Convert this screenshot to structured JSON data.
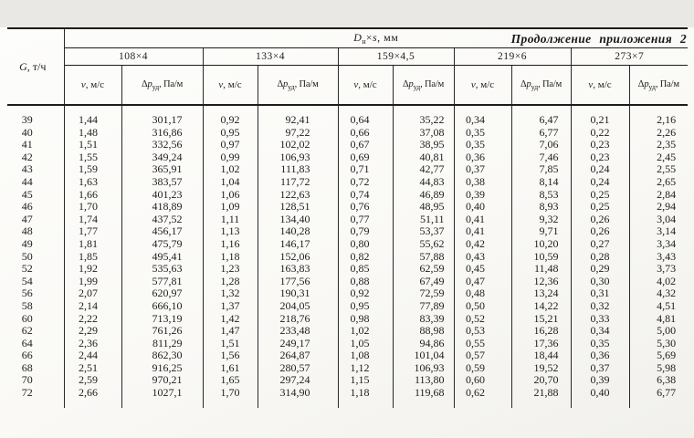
{
  "caption": "Продолжение приложения 2",
  "colors": {
    "paper": "#faf9f6",
    "ink": "#1d1d1d",
    "rule": "#1c1c1c"
  },
  "table": {
    "flow_header": {
      "symbol": "G",
      "unit": ", т/ч"
    },
    "diameter_header": {
      "symbol": "D",
      "subscript": "н",
      "times": "×",
      "symbol2": "s",
      "unit": ", мм"
    },
    "groups": [
      "108×4",
      "133×4",
      "159×4,5",
      "219×6",
      "273×7"
    ],
    "velocity_header": {
      "symbol": "v",
      "unit": ", м/с"
    },
    "pressure_header": {
      "delta": "Δ",
      "symbol": "p",
      "subscript": "уд",
      "unit": ", Па/м"
    },
    "rows": [
      {
        "g": "39",
        "values": [
          "1,44",
          "301,17",
          "0,92",
          "92,41",
          "0,64",
          "35,22",
          "0,34",
          "6,47",
          "0,21",
          "2,16"
        ]
      },
      {
        "g": "40",
        "values": [
          "1,48",
          "316,86",
          "0,95",
          "97,22",
          "0,66",
          "37,08",
          "0,35",
          "6,77",
          "0,22",
          "2,26"
        ]
      },
      {
        "g": "41",
        "values": [
          "1,51",
          "332,56",
          "0,97",
          "102,02",
          "0,67",
          "38,95",
          "0,35",
          "7,06",
          "0,23",
          "2,35"
        ]
      },
      {
        "g": "42",
        "values": [
          "1,55",
          "349,24",
          "0,99",
          "106,93",
          "0,69",
          "40,81",
          "0,36",
          "7,46",
          "0,23",
          "2,45"
        ]
      },
      {
        "g": "43",
        "values": [
          "1,59",
          "365,91",
          "1,02",
          "111,83",
          "0,71",
          "42,77",
          "0,37",
          "7,85",
          "0,24",
          "2,55"
        ]
      },
      {
        "g": "44",
        "values": [
          "1,63",
          "383,57",
          "1,04",
          "117,72",
          "0,72",
          "44,83",
          "0,38",
          "8,14",
          "0,24",
          "2,65"
        ]
      },
      {
        "g": "45",
        "values": [
          "1,66",
          "401,23",
          "1,06",
          "122,63",
          "0,74",
          "46,89",
          "0,39",
          "8,53",
          "0,25",
          "2,84"
        ]
      },
      {
        "g": "46",
        "values": [
          "1,70",
          "418,89",
          "1,09",
          "128,51",
          "0,76",
          "48,95",
          "0,40",
          "8,93",
          "0,25",
          "2,94"
        ]
      },
      {
        "g": "47",
        "values": [
          "1,74",
          "437,52",
          "1,11",
          "134,40",
          "0,77",
          "51,11",
          "0,41",
          "9,32",
          "0,26",
          "3,04"
        ]
      },
      {
        "g": "48",
        "values": [
          "1,77",
          "456,17",
          "1,13",
          "140,28",
          "0,79",
          "53,37",
          "0,41",
          "9,71",
          "0,26",
          "3,14"
        ]
      },
      {
        "g": "49",
        "values": [
          "1,81",
          "475,79",
          "1,16",
          "146,17",
          "0,80",
          "55,62",
          "0,42",
          "10,20",
          "0,27",
          "3,34"
        ]
      },
      {
        "g": "50",
        "values": [
          "1,85",
          "495,41",
          "1,18",
          "152,06",
          "0,82",
          "57,88",
          "0,43",
          "10,59",
          "0,28",
          "3,43"
        ]
      },
      {
        "g": "52",
        "values": [
          "1,92",
          "535,63",
          "1,23",
          "163,83",
          "0,85",
          "62,59",
          "0,45",
          "11,48",
          "0,29",
          "3,73"
        ]
      },
      {
        "g": "54",
        "values": [
          "1,99",
          "577,81",
          "1,28",
          "177,56",
          "0,88",
          "67,49",
          "0,47",
          "12,36",
          "0,30",
          "4,02"
        ]
      },
      {
        "g": "56",
        "values": [
          "2,07",
          "620,97",
          "1,32",
          "190,31",
          "0,92",
          "72,59",
          "0,48",
          "13,24",
          "0,31",
          "4,32"
        ]
      },
      {
        "g": "58",
        "values": [
          "2,14",
          "666,10",
          "1,37",
          "204,05",
          "0,95",
          "77,89",
          "0,50",
          "14,22",
          "0,32",
          "4,51"
        ]
      },
      {
        "g": "60",
        "values": [
          "2,22",
          "713,19",
          "1,42",
          "218,76",
          "0,98",
          "83,39",
          "0,52",
          "15,21",
          "0,33",
          "4,81"
        ]
      },
      {
        "g": "62",
        "values": [
          "2,29",
          "761,26",
          "1,47",
          "233,48",
          "1,02",
          "88,98",
          "0,53",
          "16,28",
          "0,34",
          "5,00"
        ]
      },
      {
        "g": "64",
        "values": [
          "2,36",
          "811,29",
          "1,51",
          "249,17",
          "1,05",
          "94,86",
          "0,55",
          "17,36",
          "0,35",
          "5,30"
        ]
      },
      {
        "g": "66",
        "values": [
          "2,44",
          "862,30",
          "1,56",
          "264,87",
          "1,08",
          "101,04",
          "0,57",
          "18,44",
          "0,36",
          "5,69"
        ]
      },
      {
        "g": "68",
        "values": [
          "2,51",
          "916,25",
          "1,61",
          "280,57",
          "1,12",
          "106,93",
          "0,59",
          "19,52",
          "0,37",
          "5,98"
        ]
      },
      {
        "g": "70",
        "values": [
          "2,59",
          "970,21",
          "1,65",
          "297,24",
          "1,15",
          "113,80",
          "0,60",
          "20,70",
          "0,39",
          "6,38"
        ]
      },
      {
        "g": "72",
        "values": [
          "2,66",
          "1027,1",
          "1,70",
          "314,90",
          "1,18",
          "119,68",
          "0,62",
          "21,88",
          "0,40",
          "6,77"
        ]
      }
    ]
  }
}
